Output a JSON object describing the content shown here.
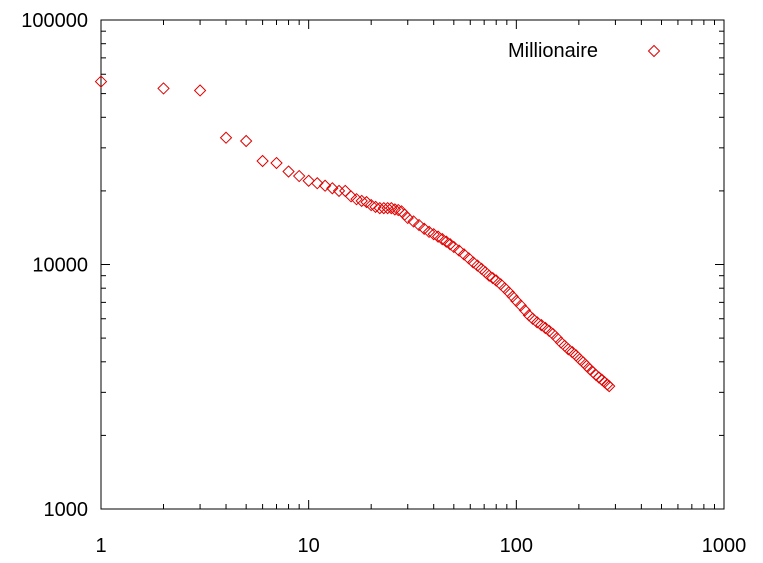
{
  "chart_data": {
    "type": "scatter",
    "title": "",
    "xlabel": "",
    "ylabel": "",
    "x_scale": "log",
    "y_scale": "log",
    "xlim": [
      1,
      1000
    ],
    "ylim": [
      1000,
      100000
    ],
    "x_ticks": [
      "1",
      "10",
      "100",
      "1000"
    ],
    "y_ticks": [
      "1000",
      "10000",
      "100000"
    ],
    "grid": false,
    "legend_position": "top-right",
    "series": [
      {
        "name": "Millionaire",
        "color": "#e00000",
        "marker": "diamond",
        "points": [
          [
            1,
            56000
          ],
          [
            2,
            52500
          ],
          [
            3,
            51500
          ],
          [
            4,
            33000
          ],
          [
            5,
            32000
          ],
          [
            6,
            26500
          ],
          [
            7,
            26000
          ],
          [
            8,
            24000
          ],
          [
            9,
            23000
          ],
          [
            10,
            22000
          ],
          [
            11,
            21500
          ],
          [
            12,
            21000
          ],
          [
            13,
            20500
          ],
          [
            14,
            20000
          ],
          [
            15,
            20000
          ],
          [
            16,
            19000
          ],
          [
            17,
            18500
          ],
          [
            18,
            18200
          ],
          [
            19,
            18000
          ],
          [
            20,
            17500
          ],
          [
            21,
            17200
          ],
          [
            22,
            17000
          ],
          [
            23,
            17000
          ],
          [
            24,
            17000
          ],
          [
            25,
            17000
          ],
          [
            26,
            16800
          ],
          [
            27,
            16700
          ],
          [
            28,
            16500
          ],
          [
            29,
            16000
          ],
          [
            30,
            15500
          ],
          [
            32,
            15000
          ],
          [
            34,
            14500
          ],
          [
            36,
            14000
          ],
          [
            38,
            13600
          ],
          [
            40,
            13300
          ],
          [
            42,
            13000
          ],
          [
            44,
            12700
          ],
          [
            46,
            12400
          ],
          [
            48,
            12100
          ],
          [
            50,
            11800
          ],
          [
            53,
            11400
          ],
          [
            56,
            11000
          ],
          [
            59,
            10600
          ],
          [
            62,
            10200
          ],
          [
            65,
            9900
          ],
          [
            68,
            9600
          ],
          [
            71,
            9300
          ],
          [
            74,
            9000
          ],
          [
            77,
            8800
          ],
          [
            80,
            8600
          ],
          [
            84,
            8300
          ],
          [
            88,
            8000
          ],
          [
            92,
            7700
          ],
          [
            96,
            7400
          ],
          [
            100,
            7100
          ],
          [
            105,
            6800
          ],
          [
            110,
            6500
          ],
          [
            115,
            6200
          ],
          [
            120,
            6000
          ],
          [
            126,
            5800
          ],
          [
            132,
            5650
          ],
          [
            138,
            5500
          ],
          [
            144,
            5350
          ],
          [
            150,
            5200
          ],
          [
            157,
            5000
          ],
          [
            164,
            4800
          ],
          [
            171,
            4650
          ],
          [
            178,
            4500
          ],
          [
            186,
            4380
          ],
          [
            194,
            4250
          ],
          [
            202,
            4100
          ],
          [
            210,
            3980
          ],
          [
            218,
            3850
          ],
          [
            226,
            3730
          ],
          [
            234,
            3630
          ],
          [
            242,
            3530
          ],
          [
            250,
            3450
          ],
          [
            258,
            3380
          ],
          [
            266,
            3300
          ],
          [
            274,
            3230
          ],
          [
            280,
            3180
          ]
        ]
      }
    ]
  }
}
